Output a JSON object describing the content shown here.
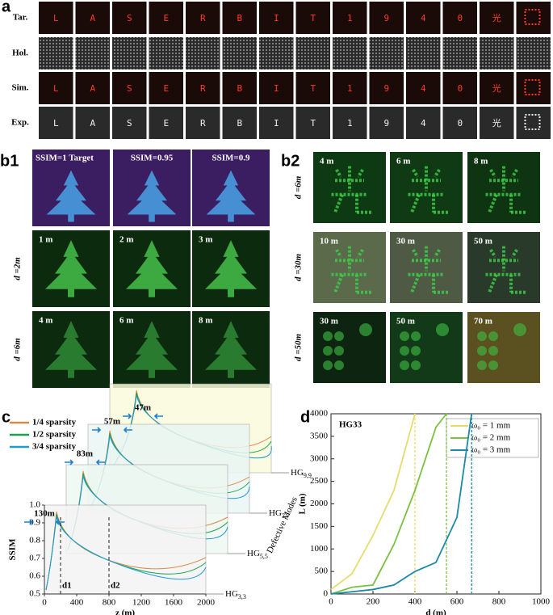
{
  "panel_a": {
    "label": "a",
    "row_labels": [
      "Tar.",
      "Hol.",
      "Sim.",
      "Exp."
    ],
    "glyphs": [
      "L",
      "A",
      "S",
      "E",
      "R",
      "B",
      "I",
      "T",
      "1",
      "9",
      "4",
      "0",
      "光"
    ]
  },
  "panel_b1": {
    "label": "b1",
    "headers": [
      "SSIM=1  Target",
      "SSIM=0.95",
      "SSIM=0.9"
    ],
    "rows": [
      {
        "label": "d =2m",
        "tiles": [
          "1 m",
          "2 m",
          "3 m"
        ]
      },
      {
        "label": "d =6m",
        "tiles": [
          "4 m",
          "6 m",
          "8 m"
        ]
      }
    ]
  },
  "panel_b2": {
    "label": "b2",
    "rows": [
      {
        "label": "d =6m",
        "tiles": [
          "4 m",
          "6 m",
          "8 m"
        ]
      },
      {
        "label": "d =30m",
        "tiles": [
          "10 m",
          "30 m",
          "50 m"
        ]
      },
      {
        "label": "d =50m",
        "tiles": [
          "30 m",
          "50 m",
          "70 m"
        ]
      }
    ]
  },
  "panel_c": {
    "label": "c",
    "legend": [
      {
        "name": "1/4 sparsity",
        "color": "#d98a4a"
      },
      {
        "name": "1/2 sparsity",
        "color": "#1aa34a"
      },
      {
        "name": "3/4 sparsity",
        "color": "#1e9bd7"
      }
    ],
    "distances": [
      "130m",
      "83m",
      "57m",
      "47m"
    ],
    "modes": [
      {
        "base": "HG",
        "sub": "3,3"
      },
      {
        "base": "HG",
        "sub": "5,5"
      },
      {
        "base": "HG",
        "sub": "7,7"
      },
      {
        "base": "HG",
        "sub": "9,9"
      }
    ],
    "y_label": "SSIM",
    "x_label": "z (m)",
    "depth_label": "Defective Modes",
    "markers": [
      "d1",
      "d2"
    ],
    "xlim": [
      0,
      2000
    ],
    "xticks": [
      0,
      400,
      800,
      1200,
      1600,
      2000
    ],
    "ylim": [
      0.5,
      1.0
    ],
    "yticks": [
      0.5,
      0.6,
      0.7,
      0.8,
      0.9,
      {
        "value": 1,
        "label": "1.0"
      }
    ]
  },
  "chart_data": {
    "type": "line",
    "label": "d",
    "annotation": "HG33",
    "x_label": "d (m)",
    "y_label": "L (m)",
    "xlim": [
      0,
      1000
    ],
    "xticks": [
      0,
      200,
      400,
      600,
      800,
      1000
    ],
    "ylim": [
      0,
      4000
    ],
    "yticks": [
      0,
      500,
      1000,
      1500,
      2000,
      2500,
      3000,
      3500,
      4000
    ],
    "series": [
      {
        "name": "ω₀ = 1 mm",
        "color": "#e6dc6a",
        "x": [
          0,
          100,
          200,
          300,
          400
        ],
        "values": [
          100,
          450,
          1300,
          2300,
          4000
        ],
        "cutoff": 400
      },
      {
        "name": "ω₀ = 2 mm",
        "color": "#7ac143",
        "x": [
          0,
          100,
          200,
          300,
          400,
          500,
          550
        ],
        "values": [
          0,
          150,
          200,
          1100,
          2300,
          3700,
          4000
        ],
        "cutoff": 550
      },
      {
        "name": "ω₀ = 3 mm",
        "color": "#1a8aa8",
        "x": [
          0,
          100,
          200,
          300,
          400,
          500,
          600,
          670
        ],
        "values": [
          0,
          50,
          100,
          200,
          500,
          700,
          1700,
          4000
        ],
        "cutoff": 670
      }
    ]
  }
}
